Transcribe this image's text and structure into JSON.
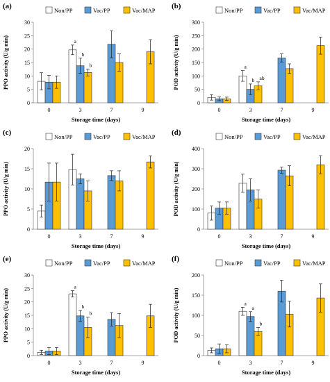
{
  "colors": {
    "Non/PP": "#ffffff",
    "Vac/PP": "#5b9bd5",
    "Vac/MAP": "#ffc000",
    "axis": "#888888",
    "bar_edge": "#333333"
  },
  "chart_data": [
    {
      "type": "bar",
      "panel_label": "(a)",
      "categories": [
        "0",
        "3",
        "7",
        "9"
      ],
      "xlabel": "Storage time (days)",
      "ylabel": "PPO activity (U/g min)",
      "ylim": [
        0,
        30
      ],
      "yticks": [
        0,
        5,
        10,
        15,
        20,
        25,
        30
      ],
      "legend": {
        "placement": "top",
        "entries": [
          "Non/PP",
          "Vac/PP",
          "Vac/MAP"
        ]
      },
      "series": [
        {
          "name": "Non/PP",
          "values": [
            8,
            19.7,
            null,
            null
          ],
          "errors": [
            3.2,
            1.8,
            null,
            null
          ],
          "labels": [
            "",
            "a",
            "",
            ""
          ]
        },
        {
          "name": "Vac/PP",
          "values": [
            7.7,
            13.8,
            21.8,
            null
          ],
          "errors": [
            2.5,
            2.8,
            5.0,
            null
          ],
          "labels": [
            "",
            "b",
            "",
            ""
          ]
        },
        {
          "name": "Vac/MAP",
          "values": [
            7.7,
            11.3,
            15.0,
            19.0
          ],
          "errors": [
            2.3,
            1.3,
            3.2,
            4.5
          ],
          "labels": [
            "",
            "b",
            "",
            ""
          ]
        }
      ]
    },
    {
      "type": "bar",
      "panel_label": "(b)",
      "categories": [
        "0",
        "3",
        "7",
        "9"
      ],
      "xlabel": "Storage time (days)",
      "ylabel": "POD activity (U/g min)",
      "ylim": [
        0,
        300
      ],
      "yticks": [
        0,
        50,
        100,
        150,
        200,
        250,
        300
      ],
      "legend": {
        "placement": "top",
        "entries": [
          "Non/PP",
          "Vac/PP",
          "Vac/MAP"
        ]
      },
      "series": [
        {
          "name": "Non/PP",
          "values": [
            20,
            100,
            null,
            null
          ],
          "errors": [
            10,
            20,
            null,
            null
          ],
          "labels": [
            "",
            "a",
            "",
            ""
          ]
        },
        {
          "name": "Vac/PP",
          "values": [
            15,
            50,
            167,
            null
          ],
          "errors": [
            7,
            20,
            15,
            null
          ],
          "labels": [
            "",
            "b",
            "",
            ""
          ]
        },
        {
          "name": "Vac/MAP",
          "values": [
            15,
            63,
            127,
            213
          ],
          "errors": [
            6,
            15,
            18,
            32
          ],
          "labels": [
            "",
            "ab",
            "",
            ""
          ]
        }
      ]
    },
    {
      "type": "bar",
      "panel_label": "(c)",
      "categories": [
        "0",
        "3",
        "7",
        "9"
      ],
      "xlabel": "Storage time (days)",
      "ylabel": "PPO activity (U/g min)",
      "ylim": [
        0,
        20
      ],
      "yticks": [
        0,
        5,
        10,
        15,
        20
      ],
      "legend": {
        "placement": "top",
        "entries": [
          "Non/PP",
          "Vac/PP",
          "Vac/MAP"
        ]
      },
      "series": [
        {
          "name": "Non/PP",
          "values": [
            4.5,
            14.8,
            null,
            null
          ],
          "errors": [
            1.5,
            3.8,
            null,
            null
          ]
        },
        {
          "name": "Vac/PP",
          "values": [
            11.7,
            12.5,
            13.3,
            null
          ],
          "errors": [
            4.7,
            1.2,
            1.2,
            null
          ]
        },
        {
          "name": "Vac/MAP",
          "values": [
            11.7,
            9.5,
            12.0,
            16.7
          ],
          "errors": [
            4.7,
            2.5,
            2.5,
            1.5
          ]
        }
      ]
    },
    {
      "type": "bar",
      "panel_label": "(d)",
      "categories": [
        "0",
        "3",
        "7",
        "9"
      ],
      "xlabel": "Storage time (days)",
      "ylabel": "POD activity (U/g min)",
      "ylim": [
        0,
        400
      ],
      "yticks": [
        0,
        100,
        200,
        300,
        400
      ],
      "legend": {
        "placement": "top",
        "entries": [
          "Non/PP",
          "Vac/PP",
          "Vac/MAP"
        ]
      },
      "series": [
        {
          "name": "Non/PP",
          "values": [
            80,
            228,
            null,
            null
          ],
          "errors": [
            35,
            45,
            null,
            null
          ]
        },
        {
          "name": "Vac/PP",
          "values": [
            105,
            195,
            293,
            null
          ],
          "errors": [
            30,
            55,
            15,
            null
          ]
        },
        {
          "name": "Vac/MAP",
          "values": [
            105,
            150,
            265,
            320
          ],
          "errors": [
            30,
            45,
            50,
            45
          ]
        }
      ]
    },
    {
      "type": "bar",
      "panel_label": "(e)",
      "categories": [
        "0",
        "3",
        "7",
        "9"
      ],
      "xlabel": "Storage time (days)",
      "ylabel": "PPO activity (U/g min)",
      "ylim": [
        0,
        30
      ],
      "yticks": [
        0,
        5,
        10,
        15,
        20,
        25,
        30
      ],
      "legend": {
        "placement": "top",
        "entries": [
          "Non/PP",
          "Vac/PP",
          "Vac/MAP"
        ]
      },
      "series": [
        {
          "name": "Non/PP",
          "values": [
            1.2,
            23.0,
            null,
            null
          ],
          "errors": [
            0.8,
            1.2,
            null,
            null
          ],
          "labels": [
            "",
            "a",
            "",
            ""
          ]
        },
        {
          "name": "Vac/PP",
          "values": [
            1.7,
            14.8,
            13.5,
            null
          ],
          "errors": [
            1.3,
            2.0,
            2.5,
            null
          ],
          "labels": [
            "",
            "b",
            "",
            ""
          ]
        },
        {
          "name": "Vac/MAP",
          "values": [
            1.7,
            10.5,
            11.2,
            14.8
          ],
          "errors": [
            1.3,
            3.8,
            4.5,
            4.3
          ],
          "labels": [
            "",
            "b",
            "",
            ""
          ]
        }
      ]
    },
    {
      "type": "bar",
      "panel_label": "(f)",
      "categories": [
        "0",
        "3",
        "7",
        "9"
      ],
      "xlabel": "Storage time (days)",
      "ylabel": "POD activity (U/g min)",
      "ylim": [
        0,
        200
      ],
      "yticks": [
        0,
        50,
        100,
        150,
        200
      ],
      "legend": {
        "placement": "top",
        "entries": [
          "Non/PP",
          "Vac/PP",
          "Vac/MAP"
        ]
      },
      "series": [
        {
          "name": "Non/PP",
          "values": [
            13,
            110,
            null,
            null
          ],
          "errors": [
            6,
            10,
            null,
            null
          ],
          "labels": [
            "",
            "a",
            "",
            ""
          ]
        },
        {
          "name": "Vac/PP",
          "values": [
            17,
            97,
            160,
            null
          ],
          "errors": [
            12,
            12,
            27,
            null
          ],
          "labels": [
            "",
            "a",
            "",
            ""
          ]
        },
        {
          "name": "Vac/MAP",
          "values": [
            17,
            60,
            103,
            143
          ],
          "errors": [
            10,
            10,
            32,
            35
          ],
          "labels": [
            "",
            "b",
            "",
            ""
          ]
        }
      ]
    }
  ]
}
